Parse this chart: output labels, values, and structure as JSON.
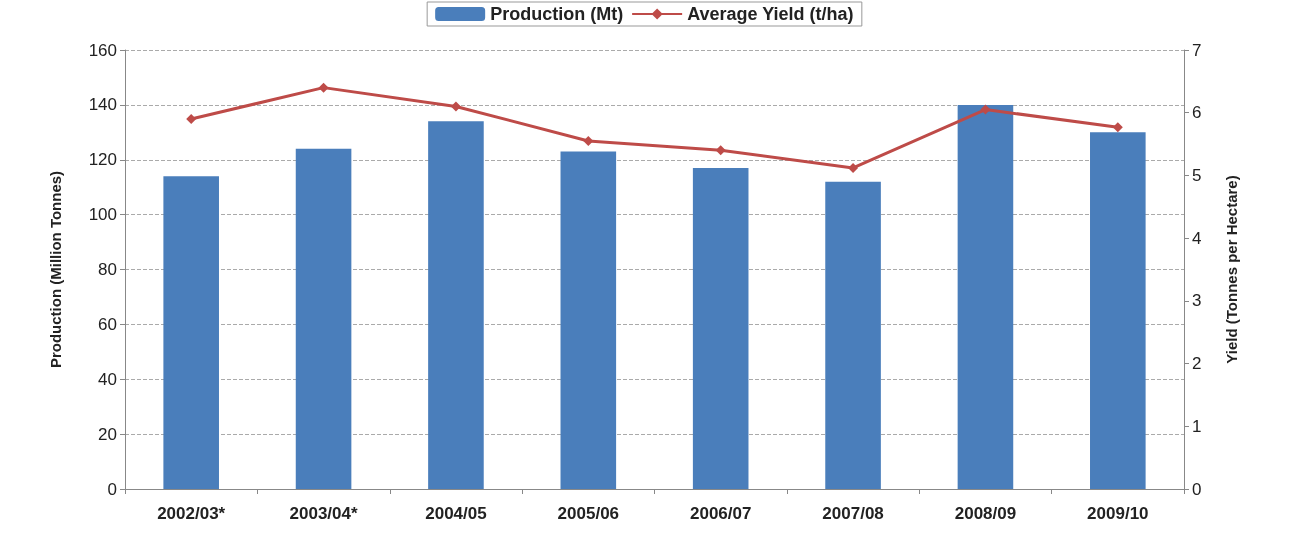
{
  "chart_data": {
    "type": "bar",
    "categories": [
      "2002/03*",
      "2003/04*",
      "2004/05",
      "2005/06",
      "2006/07",
      "2007/08",
      "2008/09",
      "2009/10"
    ],
    "series": [
      {
        "name": "Production (Mt)",
        "color": "#4a7ebb",
        "values": [
          114,
          124,
          134,
          123,
          117,
          112,
          140,
          130
        ]
      },
      {
        "name": "Average Yield (t/ha)",
        "type": "line",
        "axis": "y2",
        "color": "#be4b48",
        "marker": "diamond",
        "values": [
          5.9,
          6.4,
          6.1,
          5.55,
          5.4,
          5.12,
          6.05,
          5.77
        ]
      }
    ],
    "ylabel": "Production (Million Tonnes)",
    "y2label": "Yield (Tonnes per Hectare)",
    "ylim": [
      0,
      160
    ],
    "yticks": [
      0,
      20,
      40,
      60,
      80,
      100,
      120,
      140,
      160
    ],
    "y2lim": [
      0,
      7
    ],
    "y2ticks": [
      0,
      1,
      2,
      3,
      4,
      5,
      6,
      7
    ],
    "grid": "y",
    "legend": "top"
  }
}
